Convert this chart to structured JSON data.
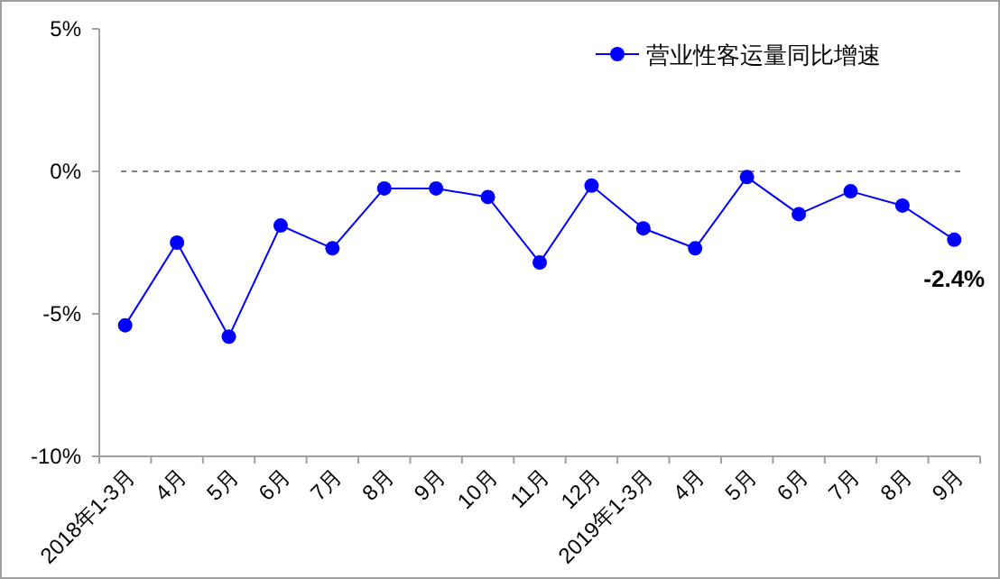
{
  "chart_data": {
    "type": "line",
    "categories": [
      "2018年1-3月",
      "4月",
      "5月",
      "6月",
      "7月",
      "8月",
      "9月",
      "10月",
      "11月",
      "12月",
      "2019年1-3月",
      "4月",
      "5月",
      "6月",
      "7月",
      "8月",
      "9月"
    ],
    "series": [
      {
        "name": "营业性客运量同比增速",
        "color": "#0000ff",
        "values": [
          -5.4,
          -2.5,
          -5.8,
          -1.9,
          -2.7,
          -0.6,
          -0.6,
          -0.9,
          -3.2,
          -0.5,
          -2.0,
          -2.7,
          -0.2,
          -1.5,
          -0.7,
          -1.2,
          -2.4
        ],
        "value_labels": [
          null,
          null,
          null,
          null,
          null,
          null,
          null,
          null,
          null,
          null,
          null,
          null,
          null,
          null,
          null,
          null,
          "-2.4%"
        ]
      }
    ],
    "ylim": [
      -10,
      5
    ],
    "yticks": [
      {
        "value": -10,
        "label": "-10%"
      },
      {
        "value": -5,
        "label": "-5%"
      },
      {
        "value": 0,
        "label": "0%"
      },
      {
        "value": 5,
        "label": "5%"
      }
    ],
    "ref_lines": [
      {
        "axis": "y",
        "value": 0,
        "color": "#808080",
        "line_style": "dashed"
      }
    ],
    "grid": false,
    "legend": "top right",
    "marker": "circle",
    "line_style": "solid"
  }
}
